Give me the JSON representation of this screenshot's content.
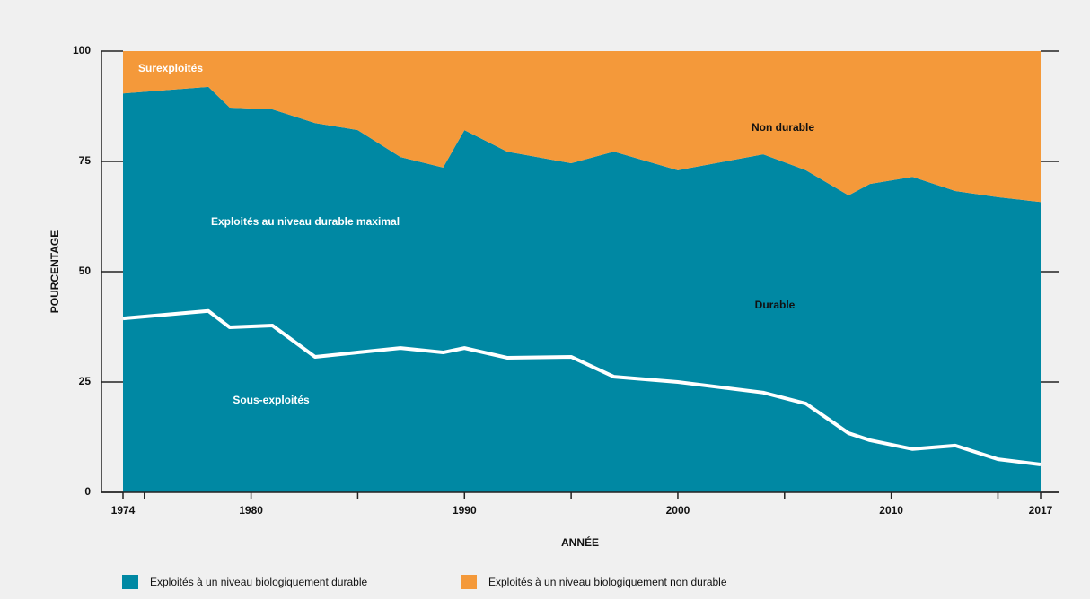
{
  "chart_data": {
    "type": "stacked_area",
    "x_label": "ANNÉE",
    "y_label": "POURCENTAGE",
    "x": [
      1974,
      1978,
      1979,
      1981,
      1983,
      1985,
      1987,
      1989,
      1990,
      1992,
      1995,
      1997,
      2000,
      2004,
      2006,
      2008,
      2009,
      2011,
      2013,
      2015,
      2017
    ],
    "series": [
      {
        "name": "Exploités à un niveau biologiquement durable",
        "color": "#0088a3",
        "values": [
          90.4,
          91.9,
          87.2,
          86.8,
          83.7,
          82.1,
          76.0,
          73.6,
          82.1,
          77.2,
          74.6,
          77.2,
          73.0,
          76.6,
          73.0,
          67.3,
          69.9,
          71.5,
          68.3,
          66.9,
          65.8
        ]
      },
      {
        "name": "Exploités à un niveau biologiquement non durable",
        "color": "#f4993a",
        "values": [
          9.6,
          8.1,
          12.8,
          13.2,
          16.3,
          17.9,
          24.0,
          26.4,
          17.9,
          22.8,
          25.4,
          22.8,
          27.0,
          23.4,
          27.0,
          32.7,
          30.1,
          28.5,
          31.7,
          33.1,
          34.2
        ]
      }
    ],
    "underexploited_line": {
      "color": "#ffffff",
      "values": [
        39.4,
        41.1,
        37.4,
        37.8,
        30.7,
        31.7,
        32.7,
        31.7,
        32.7,
        30.5,
        30.7,
        26.2,
        25.0,
        22.6,
        20.1,
        13.4,
        11.8,
        9.8,
        10.6,
        7.5,
        6.3
      ]
    },
    "annotations": [
      "Surexploités",
      "Non durable",
      "Exploités au niveau durable maximal",
      "Durable",
      "Sous-exploités"
    ],
    "xlim": [
      1974,
      2017
    ],
    "xticks": [
      1974,
      1980,
      1990,
      2000,
      2010,
      2017
    ],
    "minor_xticks": [
      1975,
      1985,
      1995,
      2005,
      2015
    ],
    "ylim": [
      0,
      100
    ],
    "yticks": [
      0,
      25,
      50,
      75,
      100
    ]
  }
}
